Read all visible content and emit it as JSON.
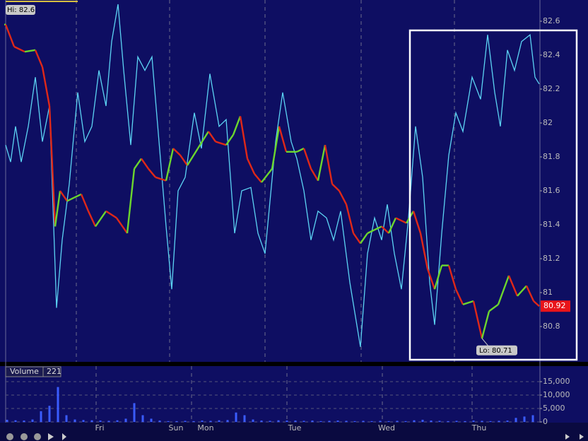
{
  "chart_data": [
    {
      "type": "line",
      "hi_label": "Hi: 82.6",
      "lo_label": "Lo: 80.71",
      "last_label": "80.92",
      "xlim": [
        0,
        756
      ],
      "ylim": [
        80.6,
        82.725
      ],
      "yticks": [
        82.6,
        82.4,
        82.2,
        82,
        81.8,
        81.6,
        81.4,
        81.2,
        81,
        80.8
      ],
      "series": [
        {
          "color": "#e02818",
          "up_color": "#6cd62e",
          "x": [
            0,
            12,
            27,
            42,
            52,
            62,
            70,
            77,
            87,
            97,
            107,
            117,
            127,
            142,
            157,
            172,
            182,
            192,
            202,
            212,
            227,
            237,
            247,
            257,
            272,
            287,
            297,
            312,
            322,
            332,
            342,
            352,
            362,
            377,
            387,
            397,
            412,
            422,
            432,
            442,
            452,
            462,
            472,
            482,
            492,
            502,
            512,
            522,
            532,
            542,
            552,
            567,
            577,
            587,
            597,
            607,
            617,
            627,
            637,
            647,
            662,
            674,
            684,
            697,
            712,
            724,
            737,
            747,
            755
          ],
          "values": [
            82.58,
            82.45,
            82.42,
            82.43,
            82.33,
            82.1,
            81.39,
            81.6,
            81.54,
            81.56,
            81.58,
            81.48,
            81.39,
            81.48,
            81.44,
            81.35,
            81.73,
            81.79,
            81.73,
            81.68,
            81.66,
            81.85,
            81.81,
            81.75,
            81.85,
            81.95,
            81.89,
            81.87,
            81.93,
            82.04,
            81.79,
            81.7,
            81.65,
            81.73,
            81.98,
            81.83,
            81.83,
            81.85,
            81.73,
            81.66,
            81.87,
            81.64,
            81.6,
            81.52,
            81.35,
            81.29,
            81.35,
            81.37,
            81.39,
            81.35,
            81.44,
            81.41,
            81.48,
            81.35,
            81.14,
            81.02,
            81.16,
            81.16,
            81.02,
            80.93,
            80.95,
            80.73,
            80.89,
            80.93,
            81.1,
            80.98,
            81.04,
            80.95,
            80.92
          ]
        },
        {
          "color": "#5cd4f4",
          "x": [
            0,
            7,
            14,
            22,
            32,
            42,
            52,
            62,
            72,
            80,
            90,
            102,
            112,
            122,
            132,
            142,
            150,
            159,
            167,
            177,
            187,
            197,
            207,
            217,
            227,
            235,
            244,
            254,
            267,
            277,
            289,
            302,
            312,
            324,
            334,
            347,
            357,
            367,
            382,
            392,
            404,
            412,
            422,
            432,
            442,
            454,
            464,
            474,
            487,
            502,
            512,
            522,
            532,
            540,
            550,
            560,
            570,
            580,
            590,
            600,
            607,
            617,
            627,
            637,
            647,
            660,
            672,
            682,
            692,
            700,
            710,
            720,
            730,
            742,
            749,
            755
          ],
          "values": [
            81.87,
            81.77,
            81.98,
            81.77,
            81.98,
            82.27,
            81.89,
            82.1,
            80.91,
            81.31,
            81.64,
            82.18,
            81.89,
            81.98,
            82.31,
            82.1,
            82.48,
            82.7,
            82.31,
            81.87,
            82.39,
            82.31,
            82.39,
            81.89,
            81.39,
            81.02,
            81.6,
            81.68,
            82.06,
            81.85,
            82.29,
            81.98,
            82.02,
            81.35,
            81.6,
            81.62,
            81.35,
            81.23,
            81.89,
            82.18,
            81.89,
            81.79,
            81.6,
            81.31,
            81.48,
            81.44,
            81.31,
            81.48,
            81.06,
            80.68,
            81.23,
            81.44,
            81.31,
            81.52,
            81.23,
            81.02,
            81.44,
            81.98,
            81.68,
            81.06,
            80.81,
            81.35,
            81.81,
            82.06,
            81.95,
            82.27,
            82.14,
            82.52,
            82.18,
            81.98,
            82.43,
            82.31,
            82.48,
            82.52,
            82.27,
            82.23
          ]
        }
      ]
    },
    {
      "type": "bar",
      "title": "Volume",
      "value_label": "221",
      "color": "#3a5cff",
      "xlim": [
        0,
        756
      ],
      "ylim": [
        0,
        20800
      ],
      "yticks": [
        {
          "value": 15000,
          "label": "15,000"
        },
        {
          "value": 10000,
          "label": "10,000"
        },
        {
          "value": 5000,
          "label": "5,000"
        },
        0
      ],
      "grid": true,
      "xticks": [
        {
          "value": 133,
          "label": "Fri"
        },
        {
          "value": 241,
          "label": "Sun"
        },
        {
          "value": 283,
          "label": "Mon"
        },
        {
          "value": 409,
          "label": "Tue"
        },
        {
          "value": 539,
          "label": "Wed"
        },
        {
          "value": 670,
          "label": "Thu"
        }
      ],
      "x": [
        2,
        14,
        26,
        38,
        50,
        62,
        74,
        86,
        98,
        110,
        122,
        134,
        146,
        158,
        170,
        182,
        194,
        206,
        218,
        230,
        242,
        254,
        266,
        278,
        290,
        302,
        314,
        326,
        338,
        350,
        362,
        374,
        386,
        398,
        410,
        422,
        434,
        446,
        458,
        470,
        482,
        494,
        506,
        518,
        530,
        542,
        554,
        566,
        578,
        590,
        602,
        614,
        626,
        638,
        650,
        662,
        674,
        686,
        698,
        710,
        722,
        734,
        746
      ],
      "values": [
        800,
        600,
        500,
        900,
        4000,
        6000,
        13000,
        2500,
        900,
        700,
        600,
        500,
        400,
        600,
        1200,
        7000,
        2500,
        1200,
        500,
        300,
        300,
        400,
        300,
        500,
        400,
        600,
        700,
        3500,
        2500,
        900,
        500,
        400,
        600,
        500,
        500,
        400,
        500,
        300,
        400,
        500,
        400,
        300,
        400,
        300,
        400,
        300,
        400,
        300,
        600,
        800,
        500,
        400,
        300,
        400,
        300,
        500,
        400,
        300,
        400,
        500,
        1500,
        2000,
        2500
      ]
    }
  ]
}
